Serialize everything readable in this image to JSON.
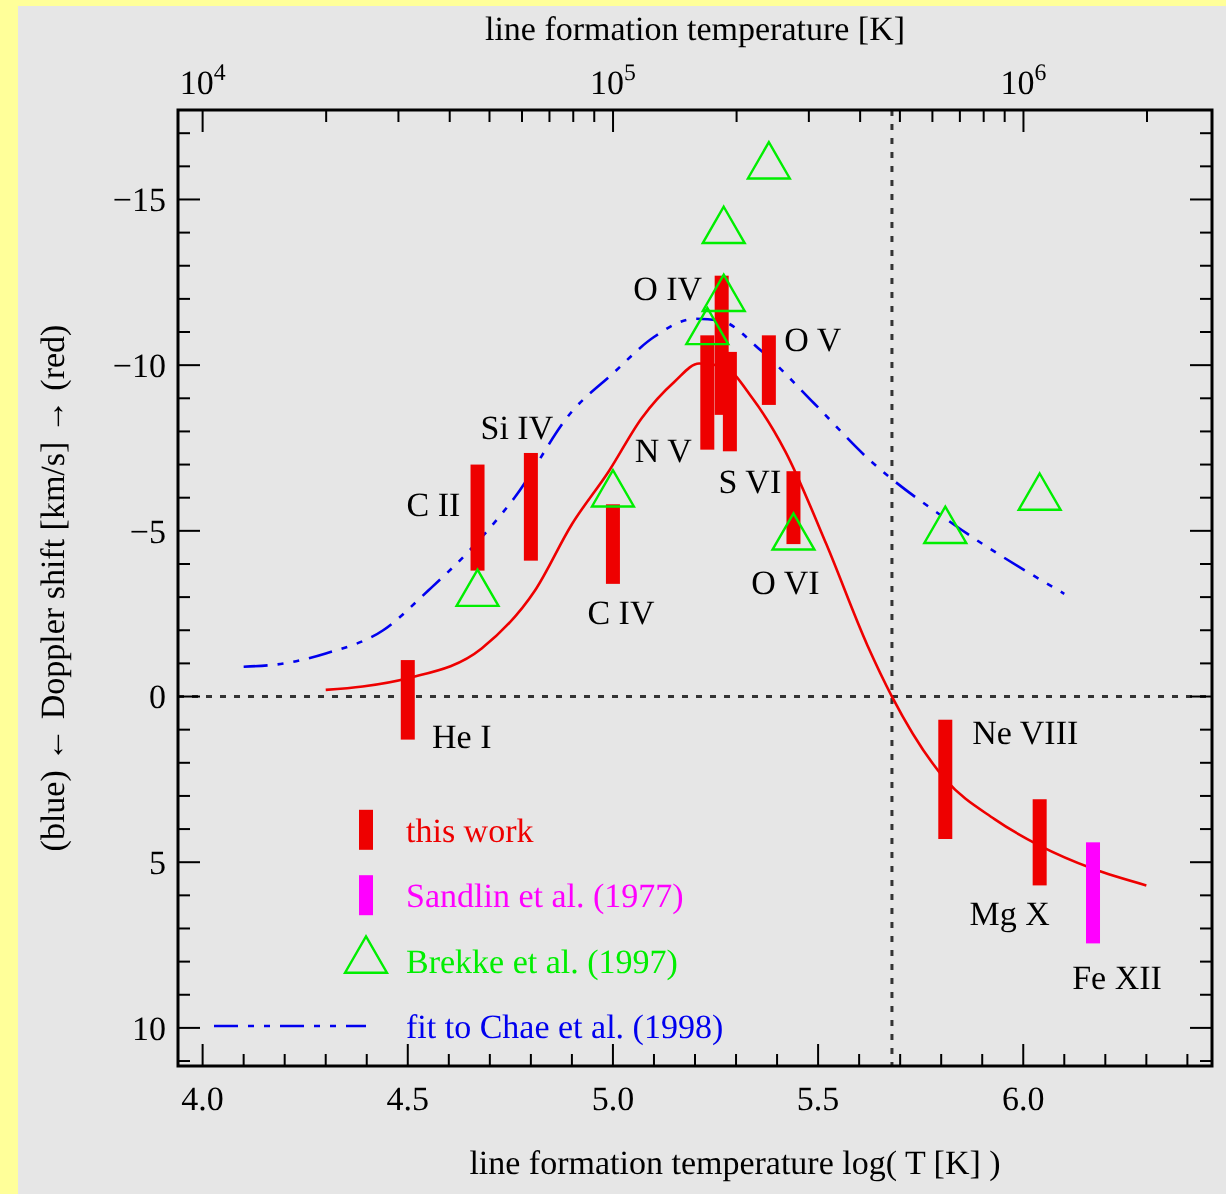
{
  "chart_data": {
    "type": "bar",
    "xlabel": "line formation temperature  log( T [K] )",
    "x2label": "line formation temperature  [K]",
    "ylabel": "(blue)   ←   Doppler shift  [km/s]   →   (red)",
    "xlim": [
      3.94,
      6.46
    ],
    "ylim": [
      11.15,
      -17.7
    ],
    "x2lim": [
      8710,
      2880000
    ],
    "xticks": [
      {
        "value": 4,
        "label": "4.0"
      },
      {
        "value": 4.1,
        "label": null
      },
      {
        "value": 4.2,
        "label": null
      },
      {
        "value": 4.3,
        "label": null
      },
      {
        "value": 4.4,
        "label": null
      },
      {
        "value": 4.5,
        "label": "4.5"
      },
      {
        "value": 4.6,
        "label": null
      },
      {
        "value": 4.7,
        "label": null
      },
      {
        "value": 4.8,
        "label": null
      },
      {
        "value": 4.9,
        "label": null
      },
      {
        "value": 5,
        "label": "5.0"
      },
      {
        "value": 5.1,
        "label": null
      },
      {
        "value": 5.2,
        "label": null
      },
      {
        "value": 5.3,
        "label": null
      },
      {
        "value": 5.4,
        "label": null
      },
      {
        "value": 5.5,
        "label": "5.5"
      },
      {
        "value": 5.6,
        "label": null
      },
      {
        "value": 5.7,
        "label": null
      },
      {
        "value": 5.8,
        "label": null
      },
      {
        "value": 5.9,
        "label": null
      },
      {
        "value": 6,
        "label": "6.0"
      },
      {
        "value": 6.1,
        "label": null
      },
      {
        "value": 6.2,
        "label": null
      },
      {
        "value": 6.3,
        "label": null
      },
      {
        "value": 6.4,
        "label": null
      }
    ],
    "x2ticks": [
      {
        "value": 10000,
        "label": "10$^{4}$"
      },
      {
        "value": 20000,
        "label": null
      },
      {
        "value": 30000,
        "label": null
      },
      {
        "value": 40000,
        "label": null
      },
      {
        "value": 50000,
        "label": null
      },
      {
        "value": 60000,
        "label": null
      },
      {
        "value": 70000,
        "label": null
      },
      {
        "value": 80000,
        "label": null
      },
      {
        "value": 90000,
        "label": null
      },
      {
        "value": 100000,
        "label": "10$^{5}$"
      },
      {
        "value": 200000,
        "label": null
      },
      {
        "value": 300000,
        "label": null
      },
      {
        "value": 400000,
        "label": null
      },
      {
        "value": 500000,
        "label": null
      },
      {
        "value": 600000,
        "label": null
      },
      {
        "value": 700000,
        "label": null
      },
      {
        "value": 800000,
        "label": null
      },
      {
        "value": 900000,
        "label": null
      },
      {
        "value": 1000000,
        "label": "10$^{6}$"
      },
      {
        "value": 2000000,
        "label": null
      }
    ],
    "yticks": [
      {
        "value": -17,
        "label": null
      },
      {
        "value": -16,
        "label": null
      },
      {
        "value": -15,
        "label": "−15"
      },
      {
        "value": -14,
        "label": null
      },
      {
        "value": -13,
        "label": null
      },
      {
        "value": -12,
        "label": null
      },
      {
        "value": -11,
        "label": null
      },
      {
        "value": -10,
        "label": "−10"
      },
      {
        "value": -9,
        "label": null
      },
      {
        "value": -8,
        "label": null
      },
      {
        "value": -7,
        "label": null
      },
      {
        "value": -6,
        "label": null
      },
      {
        "value": -5,
        "label": "−5"
      },
      {
        "value": -4,
        "label": null
      },
      {
        "value": -3,
        "label": null
      },
      {
        "value": -2,
        "label": null
      },
      {
        "value": -1,
        "label": null
      },
      0,
      {
        "value": 1,
        "label": null
      },
      {
        "value": 2,
        "label": null
      },
      {
        "value": 3,
        "label": null
      },
      {
        "value": 4,
        "label": null
      },
      5,
      {
        "value": 6,
        "label": null
      },
      {
        "value": 7,
        "label": null
      },
      {
        "value": 8,
        "label": null
      },
      {
        "value": 9,
        "label": null
      },
      10,
      {
        "value": 11,
        "label": null
      }
    ],
    "legend": "bottom left",
    "log": "x2",
    "series": [
      {
        "name": "this work",
        "color": "#ee0000",
        "x": [
          4.5,
          4.67,
          4.8,
          5.0,
          5.23,
          5.265,
          5.285,
          5.38,
          5.44,
          5.81,
          6.04
        ],
        "base": [
          -1.1,
          -7.0,
          -7.35,
          -5.8,
          -10.9,
          -12.7,
          -10.4,
          -10.9,
          -6.8,
          0.7,
          3.1
        ],
        "values": [
          2.4,
          3.2,
          3.25,
          2.4,
          3.45,
          4.2,
          3.0,
          2.1,
          2.2,
          3.6,
          2.6
        ]
      },
      {
        "name": "Sandlin et al. (1977)",
        "color": "#ff00ff",
        "x": [
          6.17
        ],
        "base": [
          4.4
        ],
        "values": [
          3.05
        ]
      },
      {
        "name": "Brekke et al. (1997)",
        "type": "scatter",
        "marker": "triangle",
        "color": "#00ee00",
        "x": [
          4.67,
          5.0,
          5.23,
          5.27,
          5.27,
          5.38,
          5.44,
          5.81,
          6.04
        ],
        "values": [
          -3.1,
          -6.1,
          -11.0,
          -12.0,
          -14.05,
          -16.0,
          -4.8,
          -5.0,
          -6.0
        ]
      },
      {
        "name": "fit to Chae et al. (1998)",
        "type": "line",
        "line_style": "dashed",
        "color": "#0000ee",
        "x": [
          4.1,
          4.2,
          4.3,
          4.44,
          4.55,
          4.65,
          4.76,
          4.9,
          5.0,
          5.1,
          5.2,
          5.26,
          5.36,
          5.49,
          5.62,
          5.83,
          6.1
        ],
        "values": [
          -0.9,
          -1.0,
          -1.3,
          -2.0,
          -3.2,
          -4.4,
          -6.0,
          -8.6,
          -9.75,
          -10.85,
          -11.4,
          -11.35,
          -10.45,
          -8.85,
          -7.2,
          -5.2,
          -3.1
        ]
      },
      {
        "type": "line",
        "line_style": "solid",
        "color": "#ee0000",
        "x": [
          4.3,
          4.39,
          4.5,
          4.68,
          4.81,
          4.9,
          4.99,
          5.07,
          5.15,
          5.21,
          5.27,
          5.34,
          5.42,
          5.52,
          5.62,
          5.68,
          5.81,
          5.93,
          6.04,
          6.17,
          6.3
        ],
        "values": [
          -0.2,
          -0.3,
          -0.55,
          -1.45,
          -3.2,
          -5.2,
          -6.8,
          -8.4,
          -9.5,
          -10.05,
          -9.95,
          -9.0,
          -7.4,
          -4.6,
          -1.55,
          0,
          2.5,
          3.7,
          4.5,
          5.2,
          5.7
        ]
      }
    ],
    "ref_lines": [
      {
        "axis": "x",
        "value": 5.68,
        "line_style": "dotted",
        "color": "#333333"
      },
      {
        "axis": "y",
        "value": 0,
        "line_style": "dotted",
        "color": "#333333"
      }
    ],
    "annotations": [
      {
        "text": "He I",
        "x": 4.5,
        "y": 1.3
      },
      {
        "text": "C II",
        "x": 4.67,
        "y": -7.0
      },
      {
        "text": "Si IV",
        "x": 4.8,
        "y": -7.35
      },
      {
        "text": "C IV",
        "x": 5.0,
        "y": -3.4
      },
      {
        "text": "N V",
        "x": 5.23,
        "y": -7.45
      },
      {
        "text": "O IV",
        "x": 5.265,
        "y": -12.7
      },
      {
        "text": "O V",
        "x": 5.38,
        "y": -10.9
      },
      {
        "text": "S VI",
        "x": 5.285,
        "y": -7.4
      },
      {
        "text": "O VI",
        "x": 5.44,
        "y": -4.6
      },
      {
        "text": "Ne VIII",
        "x": 5.81,
        "y": 0.7
      },
      {
        "text": "Mg X",
        "x": 6.04,
        "y": 5.7
      },
      {
        "text": "Fe XII",
        "x": 6.17,
        "y": 7.45
      }
    ]
  }
}
